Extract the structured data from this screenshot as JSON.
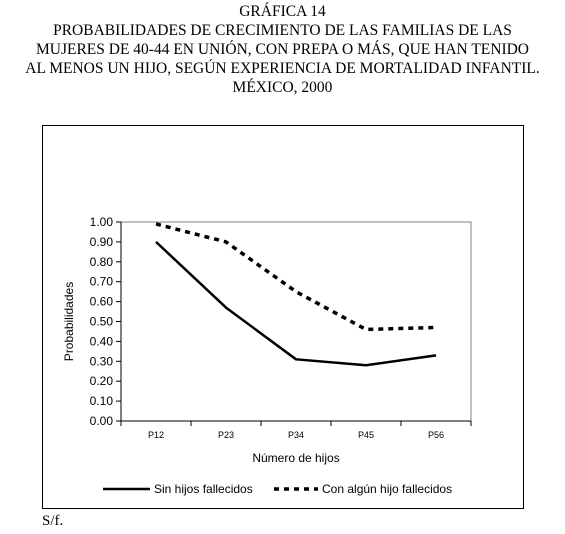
{
  "header": {
    "title_lines": [
      "GRÁFICA 14",
      "PROBABILIDADES DE CRECIMIENTO DE LAS FAMILIAS DE LAS",
      "MUJERES DE 40-44 EN UNIÓN, CON PREPA O MÁS, QUE HAN TENIDO",
      "AL MENOS UN HIJO, SEGÚN EXPERIENCIA DE MORTALIDAD INFANTIL.",
      "MÉXICO, 2000"
    ]
  },
  "source_text": "S/f.",
  "chart_data": {
    "type": "line",
    "categories": [
      "P12",
      "P23",
      "P34",
      "P45",
      "P56"
    ],
    "series": [
      {
        "name": "Sin hijos fallecidos",
        "values": [
          0.9,
          0.57,
          0.31,
          0.28,
          0.33
        ],
        "style": "solid",
        "color": "#000000"
      },
      {
        "name": "Con algún hijo fallecidos",
        "values": [
          0.99,
          0.9,
          0.65,
          0.46,
          0.47
        ],
        "style": "dashed",
        "color": "#000000"
      }
    ],
    "xlabel": "Número de hijos",
    "ylabel": "Probabilidades",
    "ylim": [
      0,
      1
    ],
    "yticks": [
      "0.00",
      "0.10",
      "0.20",
      "0.30",
      "0.40",
      "0.50",
      "0.60",
      "0.70",
      "0.80",
      "0.90",
      "1.00"
    ],
    "grid": false,
    "legend_position": "bottom"
  }
}
